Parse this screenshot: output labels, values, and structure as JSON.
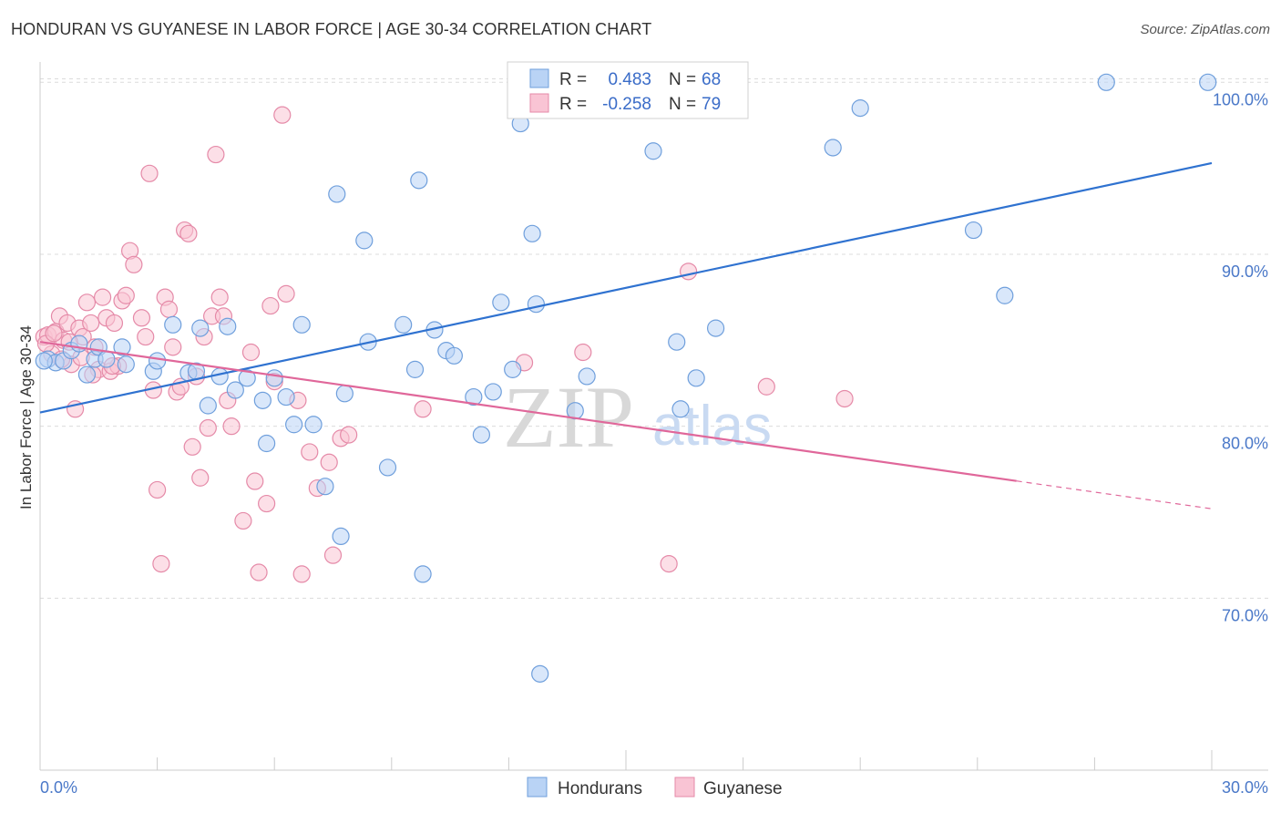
{
  "title": "HONDURAN VS GUYANESE IN LABOR FORCE | AGE 30-34 CORRELATION CHART",
  "source": "Source: ZipAtlas.com",
  "watermark": {
    "zip": "ZIP",
    "atlas": "atlas"
  },
  "colors": {
    "blue_fill": "#b9d3f5",
    "blue_stroke": "#6f9fdc",
    "blue_line": "#2f72d0",
    "pink_fill": "#f9c4d4",
    "pink_stroke": "#e58aa8",
    "pink_line": "#e0679a",
    "grid": "#dcdcdc",
    "tick_text": "#4a78c8"
  },
  "legend_top": {
    "rows": [
      {
        "r_label": "R =",
        "r_value": "0.483",
        "n_label": "N =",
        "n_value": "68",
        "series": "Hondurans"
      },
      {
        "r_label": "R =",
        "r_value": "-0.258",
        "n_label": "N =",
        "n_value": "79",
        "series": "Guyanese"
      }
    ]
  },
  "chart_data": {
    "type": "scatter",
    "title": "HONDURAN VS GUYANESE IN LABOR FORCE | AGE 30-34 CORRELATION CHART",
    "xlabel": "",
    "ylabel": "In Labor Force | Age 30-34",
    "xlim": [
      0,
      30
    ],
    "ylim": [
      60.0,
      101.5
    ],
    "x_tick_labels": [
      "0.0%",
      "30.0%"
    ],
    "y_ticks": [
      70,
      80,
      90,
      100
    ],
    "y_tick_labels": [
      "70.0%",
      "80.0%",
      "90.0%",
      "100.0%"
    ],
    "grid": true,
    "legend_position": "bottom-center",
    "series": [
      {
        "name": "Hondurans",
        "r": 0.483,
        "n": 68,
        "trend": {
          "x": [
            0,
            30
          ],
          "y": [
            80.8,
            95.3
          ],
          "dashed_from": null
        },
        "points": [
          [
            0.2,
            83.9
          ],
          [
            0.4,
            83.7
          ],
          [
            0.6,
            83.8
          ],
          [
            0.8,
            84.4
          ],
          [
            1.0,
            84.8
          ],
          [
            1.2,
            83.0
          ],
          [
            1.4,
            83.9
          ],
          [
            1.5,
            84.6
          ],
          [
            1.7,
            83.9
          ],
          [
            2.1,
            84.6
          ],
          [
            2.2,
            83.6
          ],
          [
            2.9,
            83.2
          ],
          [
            3.0,
            83.8
          ],
          [
            3.4,
            85.9
          ],
          [
            3.8,
            83.1
          ],
          [
            4.0,
            83.2
          ],
          [
            4.1,
            85.7
          ],
          [
            4.3,
            81.2
          ],
          [
            4.6,
            82.9
          ],
          [
            4.8,
            85.8
          ],
          [
            5.0,
            82.1
          ],
          [
            5.3,
            82.8
          ],
          [
            5.7,
            81.5
          ],
          [
            5.8,
            79.0
          ],
          [
            6.0,
            82.8
          ],
          [
            6.3,
            81.7
          ],
          [
            6.5,
            80.1
          ],
          [
            6.7,
            85.9
          ],
          [
            7.0,
            80.1
          ],
          [
            7.3,
            76.5
          ],
          [
            7.6,
            93.5
          ],
          [
            7.7,
            73.6
          ],
          [
            7.8,
            81.9
          ],
          [
            8.3,
            90.8
          ],
          [
            8.4,
            84.9
          ],
          [
            8.9,
            77.6
          ],
          [
            9.3,
            85.9
          ],
          [
            9.6,
            83.3
          ],
          [
            9.7,
            94.3
          ],
          [
            9.8,
            71.4
          ],
          [
            10.1,
            85.6
          ],
          [
            10.4,
            84.4
          ],
          [
            10.6,
            84.1
          ],
          [
            11.1,
            81.7
          ],
          [
            11.3,
            79.5
          ],
          [
            11.6,
            82.0
          ],
          [
            11.8,
            87.2
          ],
          [
            12.1,
            83.3
          ],
          [
            12.3,
            97.6
          ],
          [
            12.6,
            91.2
          ],
          [
            12.7,
            87.1
          ],
          [
            12.8,
            65.6
          ],
          [
            13.7,
            80.9
          ],
          [
            14.0,
            82.9
          ],
          [
            14.8,
            100.0
          ],
          [
            15.2,
            99.1
          ],
          [
            15.7,
            96.0
          ],
          [
            16.3,
            84.9
          ],
          [
            16.4,
            81.0
          ],
          [
            16.8,
            82.8
          ],
          [
            17.3,
            85.7
          ],
          [
            20.3,
            96.2
          ],
          [
            21.0,
            98.5
          ],
          [
            23.9,
            91.4
          ],
          [
            24.7,
            87.6
          ],
          [
            27.3,
            100.0
          ],
          [
            29.9,
            100.0
          ],
          [
            0.1,
            83.8
          ]
        ]
      },
      {
        "name": "Guyanese",
        "r": -0.258,
        "n": 79,
        "trend": {
          "x": [
            0,
            30
          ],
          "y": [
            84.9,
            75.2
          ],
          "dashed_from": 25.0
        },
        "points": [
          [
            0.1,
            85.2
          ],
          [
            0.2,
            85.3
          ],
          [
            0.3,
            84.2
          ],
          [
            0.4,
            85.5
          ],
          [
            0.5,
            86.4
          ],
          [
            0.6,
            85.0
          ],
          [
            0.7,
            86.0
          ],
          [
            0.8,
            83.6
          ],
          [
            0.9,
            81.0
          ],
          [
            1.0,
            85.7
          ],
          [
            1.1,
            85.2
          ],
          [
            1.2,
            87.2
          ],
          [
            1.3,
            86.0
          ],
          [
            1.4,
            84.6
          ],
          [
            1.5,
            83.3
          ],
          [
            1.6,
            87.5
          ],
          [
            1.7,
            86.3
          ],
          [
            1.8,
            83.2
          ],
          [
            1.9,
            86.0
          ],
          [
            2.0,
            83.5
          ],
          [
            2.1,
            87.3
          ],
          [
            2.2,
            87.6
          ],
          [
            2.3,
            90.2
          ],
          [
            2.4,
            89.4
          ],
          [
            2.6,
            86.3
          ],
          [
            2.7,
            85.2
          ],
          [
            2.8,
            94.7
          ],
          [
            2.9,
            82.1
          ],
          [
            3.0,
            76.3
          ],
          [
            3.1,
            72.0
          ],
          [
            3.2,
            87.5
          ],
          [
            3.3,
            86.8
          ],
          [
            3.4,
            84.6
          ],
          [
            3.5,
            82.0
          ],
          [
            3.6,
            82.3
          ],
          [
            3.7,
            91.4
          ],
          [
            3.8,
            91.2
          ],
          [
            3.9,
            78.8
          ],
          [
            4.0,
            82.9
          ],
          [
            4.1,
            77.0
          ],
          [
            4.2,
            85.2
          ],
          [
            4.3,
            79.9
          ],
          [
            4.4,
            86.4
          ],
          [
            4.5,
            95.8
          ],
          [
            4.6,
            87.5
          ],
          [
            4.7,
            86.4
          ],
          [
            4.8,
            81.5
          ],
          [
            4.9,
            80.0
          ],
          [
            5.2,
            74.5
          ],
          [
            5.4,
            84.3
          ],
          [
            5.5,
            76.8
          ],
          [
            5.6,
            71.5
          ],
          [
            5.8,
            75.5
          ],
          [
            5.9,
            87.0
          ],
          [
            6.0,
            82.6
          ],
          [
            6.2,
            98.1
          ],
          [
            6.3,
            87.7
          ],
          [
            6.6,
            81.5
          ],
          [
            6.7,
            71.4
          ],
          [
            6.9,
            78.5
          ],
          [
            7.1,
            76.4
          ],
          [
            7.4,
            77.9
          ],
          [
            7.5,
            72.5
          ],
          [
            7.7,
            79.3
          ],
          [
            7.9,
            79.5
          ],
          [
            9.8,
            81.0
          ],
          [
            12.4,
            83.7
          ],
          [
            13.9,
            84.3
          ],
          [
            16.1,
            72.0
          ],
          [
            16.6,
            89.0
          ],
          [
            18.6,
            82.3
          ],
          [
            20.6,
            81.6
          ],
          [
            0.15,
            84.8
          ],
          [
            0.35,
            85.4
          ],
          [
            0.55,
            83.9
          ],
          [
            0.75,
            84.9
          ],
          [
            1.05,
            84.0
          ],
          [
            1.35,
            83.0
          ],
          [
            1.85,
            83.5
          ]
        ]
      }
    ]
  },
  "legend_bottom": {
    "items": [
      "Hondurans",
      "Guyanese"
    ]
  }
}
